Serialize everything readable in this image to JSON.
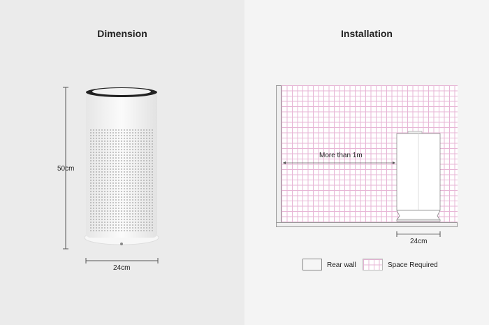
{
  "dimension": {
    "title": "Dimension",
    "height_label": "50cm",
    "width_label": "24cm"
  },
  "installation": {
    "title": "Installation",
    "clearance_label": "More than 1m",
    "width_label": "24cm"
  },
  "legend": [
    {
      "label": "Rear wall",
      "swatch": "plain"
    },
    {
      "label": "Space Required",
      "swatch": "grid"
    }
  ],
  "colors": {
    "grid_line": "#e7b6d6",
    "left_bg": "#ebebeb",
    "right_bg": "#f4f4f4"
  }
}
